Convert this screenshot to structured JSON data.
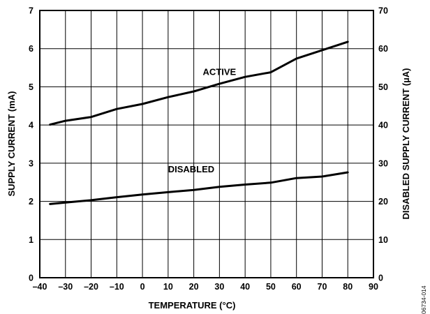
{
  "chart_data": {
    "type": "line",
    "xlabel": "TEMPERATURE (°C)",
    "ylabel": "SUPPLY CURRENT (mA)",
    "y2label": "DISABLED SUPPLY CURRENT (µA)",
    "xlim": [
      -40,
      90
    ],
    "ylim": [
      0,
      7
    ],
    "y2lim": [
      0,
      70
    ],
    "x_ticks": [
      -40,
      -30,
      -20,
      -10,
      0,
      10,
      20,
      30,
      40,
      50,
      60,
      70,
      80,
      90
    ],
    "x_tick_labels": [
      "–40",
      "–30",
      "–20",
      "–10",
      "0",
      "10",
      "20",
      "30",
      "40",
      "50",
      "60",
      "70",
      "80",
      "90"
    ],
    "y_ticks": [
      0,
      1,
      2,
      3,
      4,
      5,
      6,
      7
    ],
    "y2_ticks": [
      0,
      10,
      20,
      30,
      40,
      50,
      60,
      70
    ],
    "grid": true,
    "series": [
      {
        "name": "ACTIVE",
        "axis": "left",
        "x": [
          -36,
          -30,
          -20,
          -10,
          0,
          10,
          20,
          30,
          40,
          50,
          60,
          70,
          80
        ],
        "values": [
          4.01,
          4.11,
          4.21,
          4.42,
          4.55,
          4.73,
          4.88,
          5.08,
          5.26,
          5.38,
          5.74,
          5.96,
          6.18
        ]
      },
      {
        "name": "DISABLED",
        "axis": "right",
        "x": [
          -36,
          -30,
          -20,
          -10,
          0,
          10,
          20,
          30,
          40,
          50,
          60,
          70,
          80
        ],
        "values": [
          19.3,
          19.7,
          20.3,
          21.1,
          21.8,
          22.4,
          23.0,
          23.8,
          24.4,
          24.9,
          26.1,
          26.5,
          27.6
        ]
      }
    ],
    "annotations": [
      {
        "text": "ACTIVE",
        "x": 30,
        "y": 5.4
      },
      {
        "text": "DISABLED",
        "x": 19,
        "y": 2.85
      }
    ],
    "figure_id": "06734-014"
  }
}
